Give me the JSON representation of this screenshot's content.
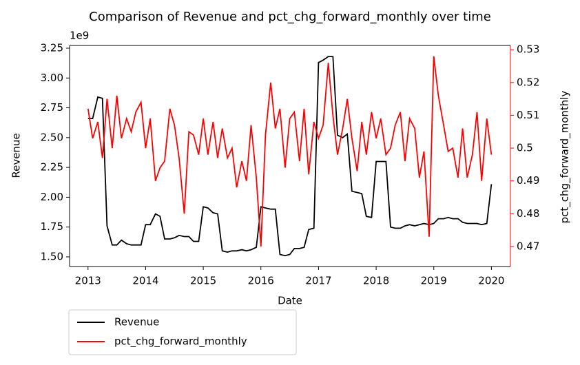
{
  "chart_data": {
    "type": "line",
    "title": "Comparison of Revenue and pct_chg_forward_monthly over time",
    "xlabel": "Date",
    "ylabel": "Revenue",
    "y2label": "pct_chg_forward_monthly",
    "y2color": "#ff0000",
    "y_offset_text": "1e9",
    "x": [
      2013.0,
      2013.08,
      2013.17,
      2013.25,
      2013.33,
      2013.42,
      2013.5,
      2013.58,
      2013.67,
      2013.75,
      2013.83,
      2013.92,
      2014.0,
      2014.08,
      2014.17,
      2014.25,
      2014.33,
      2014.42,
      2014.5,
      2014.58,
      2014.67,
      2014.75,
      2014.83,
      2014.92,
      2015.0,
      2015.08,
      2015.17,
      2015.25,
      2015.33,
      2015.42,
      2015.5,
      2015.58,
      2015.67,
      2015.75,
      2015.83,
      2015.92,
      2016.0,
      2016.08,
      2016.17,
      2016.25,
      2016.33,
      2016.42,
      2016.5,
      2016.58,
      2016.67,
      2016.75,
      2016.83,
      2016.92,
      2017.0,
      2017.08,
      2017.17,
      2017.25,
      2017.33,
      2017.42,
      2017.5,
      2017.58,
      2017.67,
      2017.75,
      2017.83,
      2017.92,
      2018.0,
      2018.08,
      2018.17,
      2018.25,
      2018.33,
      2018.42,
      2018.5,
      2018.58,
      2018.67,
      2018.75,
      2018.83,
      2018.92,
      2019.0,
      2019.08,
      2019.17,
      2019.25,
      2019.33,
      2019.42,
      2019.5,
      2019.58,
      2019.67,
      2019.75,
      2019.83,
      2019.92,
      2020.0
    ],
    "series": [
      {
        "name": "Revenue",
        "color": "#000000",
        "axis": "y",
        "values": [
          2.66,
          2.66,
          2.84,
          2.83,
          1.76,
          1.6,
          1.6,
          1.64,
          1.61,
          1.6,
          1.6,
          1.6,
          1.77,
          1.77,
          1.86,
          1.84,
          1.65,
          1.65,
          1.66,
          1.68,
          1.67,
          1.67,
          1.63,
          1.63,
          1.92,
          1.91,
          1.87,
          1.86,
          1.55,
          1.54,
          1.55,
          1.55,
          1.56,
          1.55,
          1.56,
          1.58,
          1.92,
          1.91,
          1.9,
          1.9,
          1.52,
          1.51,
          1.52,
          1.57,
          1.57,
          1.58,
          1.73,
          1.74,
          3.13,
          3.15,
          3.18,
          3.18,
          2.52,
          2.5,
          2.53,
          2.05,
          2.04,
          2.03,
          1.84,
          1.83,
          2.3,
          2.3,
          2.3,
          1.75,
          1.74,
          1.74,
          1.76,
          1.77,
          1.76,
          1.77,
          1.78,
          1.77,
          1.78,
          1.82,
          1.82,
          1.83,
          1.82,
          1.82,
          1.79,
          1.78,
          1.78,
          1.78,
          1.77,
          1.78,
          2.11
        ]
      },
      {
        "name": "pct_chg_forward_monthly",
        "color": "#ff0000",
        "axis": "y2",
        "values": [
          0.512,
          0.503,
          0.508,
          0.497,
          0.515,
          0.5,
          0.516,
          0.503,
          0.509,
          0.505,
          0.511,
          0.514,
          0.5,
          0.509,
          0.49,
          0.494,
          0.496,
          0.512,
          0.507,
          0.497,
          0.48,
          0.505,
          0.504,
          0.498,
          0.509,
          0.498,
          0.508,
          0.497,
          0.506,
          0.497,
          0.5,
          0.488,
          0.496,
          0.49,
          0.507,
          0.491,
          0.47,
          0.504,
          0.52,
          0.506,
          0.512,
          0.494,
          0.509,
          0.511,
          0.496,
          0.512,
          0.492,
          0.508,
          0.503,
          0.507,
          0.526,
          0.51,
          0.498,
          0.506,
          0.515,
          0.503,
          0.493,
          0.508,
          0.498,
          0.511,
          0.503,
          0.509,
          0.498,
          0.5,
          0.507,
          0.511,
          0.496,
          0.509,
          0.506,
          0.491,
          0.499,
          0.473,
          0.528,
          0.516,
          0.507,
          0.499,
          0.5,
          0.491,
          0.506,
          0.491,
          0.498,
          0.511,
          0.49,
          0.509,
          0.498
        ]
      }
    ],
    "xlim": [
      2012.68,
      2020.33
    ],
    "xticks": [
      2013,
      2014,
      2015,
      2016,
      2017,
      2018,
      2019,
      2020
    ],
    "ylim": [
      1.419,
      3.273
    ],
    "yticks": [
      {
        "value": 1.5,
        "label": "1.50"
      },
      1.75,
      {
        "value": 2,
        "label": "2.00"
      },
      2.25,
      {
        "value": 2.5,
        "label": "2.50"
      },
      2.75,
      {
        "value": 3,
        "label": "3.00"
      },
      3.25
    ],
    "y2lim": [
      0.4639,
      0.5313
    ],
    "y2ticks": [
      0.47,
      0.48,
      0.49,
      0.5,
      0.51,
      0.52,
      0.53
    ],
    "legend": "below-left"
  }
}
